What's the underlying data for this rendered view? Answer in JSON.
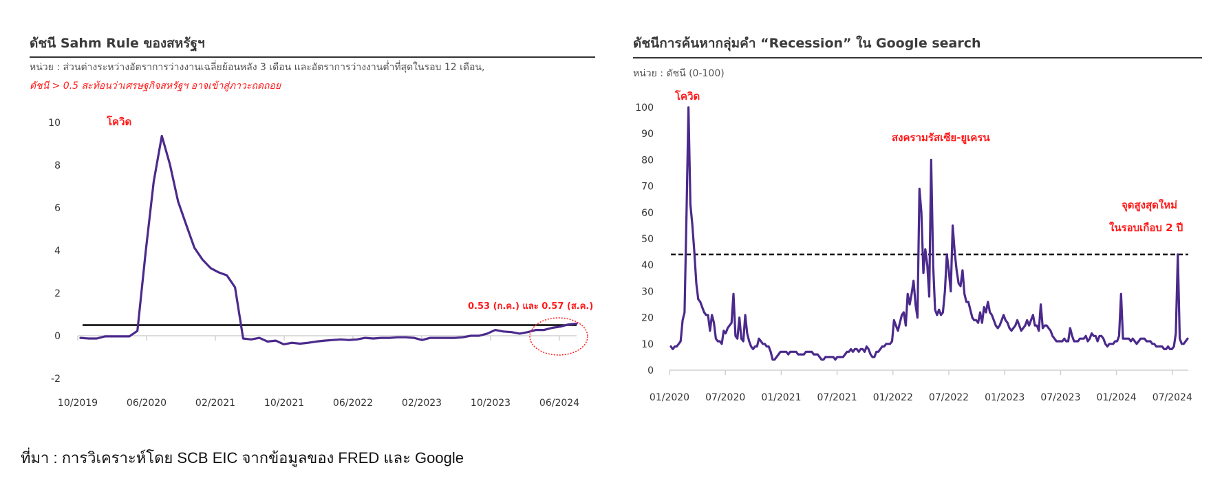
{
  "left": {
    "title": "ดัชนี Sahm Rule ของสหรัฐฯ",
    "unit": "หน่วย : ส่วนต่างระหว่างอัตราการว่างงานเฉลี่ยย้อนหลัง 3 เดือน และอัตราการว่างงานต่ำที่สุดในรอบ 12 เดือน,",
    "note": "ดัชนี > 0.5 สะท้อนว่าเศรษฐกิจสหรัฐฯ อาจเข้าสู่ภาวะถดถอย",
    "annotation_covid": "โควิด",
    "annotation_latest": "0.53 (ก.ค.) และ 0.57 (ส.ค.)"
  },
  "right": {
    "title": "ดัชนีการค้นหากลุ่มคำ “Recession” ใน Google search",
    "unit": "หน่วย : ดัชนี (0-100)",
    "annotation_covid": "โควิด",
    "annotation_war": "สงครามรัสเซีย-ยูเครน",
    "annotation_high_1": "จุดสูงสุดใหม่",
    "annotation_high_2": "ในรอบเกือบ 2 ปี"
  },
  "source": "ที่มา : การวิเคราะห์โดย SCB EIC จากข้อมูลของ FRED และ Google",
  "colors": {
    "series": "#4b2a8c",
    "threshold": "#000000",
    "annotation": "#ff1a1a",
    "axis": "#d0d0d0"
  },
  "chart_data": [
    {
      "type": "line",
      "title": "ดัชนี Sahm Rule ของสหรัฐฯ",
      "xlabel": "",
      "ylabel": "",
      "ylim": [
        -2,
        10
      ],
      "yticks": [
        10,
        8,
        6,
        4,
        2,
        0,
        -2
      ],
      "xticks": [
        "10/2019",
        "06/2020",
        "02/2021",
        "10/2021",
        "06/2022",
        "02/2023",
        "10/2023",
        "06/2024"
      ],
      "threshold": 0.5,
      "grid": false,
      "x_start": "10/2019",
      "x_step": "month",
      "series": [
        {
          "name": "Sahm Rule",
          "values": [
            -0.1,
            -0.13,
            -0.13,
            -0.03,
            -0.03,
            -0.03,
            -0.03,
            0.23,
            3.9,
            7.23,
            9.37,
            8.03,
            6.3,
            5.2,
            4.13,
            3.57,
            3.17,
            2.97,
            2.83,
            2.27,
            -0.13,
            -0.17,
            -0.1,
            -0.27,
            -0.23,
            -0.4,
            -0.33,
            -0.37,
            -0.33,
            -0.27,
            -0.23,
            -0.2,
            -0.17,
            -0.2,
            -0.17,
            -0.1,
            -0.13,
            -0.1,
            -0.1,
            -0.07,
            -0.07,
            -0.1,
            -0.2,
            -0.1,
            -0.1,
            -0.1,
            -0.1,
            -0.07,
            0.0,
            0.0,
            0.1,
            0.27,
            0.2,
            0.17,
            0.1,
            0.17,
            0.27,
            0.27,
            0.37,
            0.43,
            0.53,
            0.57
          ]
        }
      ],
      "annotations": [
        "โควิด",
        "0.53 (ก.ค.) และ 0.57 (ส.ค.)"
      ]
    },
    {
      "type": "line",
      "title": "ดัชนีการค้นหากลุ่มคำ “Recession” ใน Google search",
      "ylabel": "ดัชนี (0-100)",
      "ylim": [
        0,
        100
      ],
      "yticks": [
        100,
        90,
        80,
        70,
        60,
        50,
        40,
        30,
        20,
        10,
        0
      ],
      "xticks": [
        "01/2020",
        "07/2020",
        "01/2021",
        "07/2021",
        "01/2022",
        "07/2022",
        "01/2023",
        "07/2023",
        "01/2024",
        "07/2024"
      ],
      "threshold": 44,
      "grid": false,
      "x_start": "01/2020",
      "x_step": "week",
      "series": [
        {
          "name": "Recession search index",
          "values": [
            9,
            8,
            9,
            9,
            10,
            11,
            19,
            22,
            60,
            100,
            63,
            55,
            45,
            33,
            27,
            26,
            24,
            22,
            21,
            21,
            15,
            21,
            18,
            12,
            11,
            11,
            10,
            15,
            14,
            16,
            17,
            18,
            29,
            13,
            12,
            20,
            12,
            11,
            21,
            14,
            11,
            9,
            8,
            9,
            9,
            12,
            11,
            10,
            10,
            9,
            9,
            7,
            4,
            4,
            5,
            6,
            7,
            7,
            7,
            7,
            6,
            7,
            7,
            7,
            7,
            6,
            6,
            6,
            6,
            7,
            7,
            7,
            7,
            6,
            6,
            6,
            5,
            4,
            4,
            5,
            5,
            5,
            5,
            5,
            4,
            5,
            5,
            5,
            5,
            6,
            7,
            7,
            8,
            7,
            8,
            8,
            7,
            8,
            8,
            7,
            9,
            8,
            6,
            5,
            5,
            7,
            7,
            8,
            9,
            9,
            10,
            10,
            10,
            11,
            19,
            17,
            15,
            18,
            21,
            22,
            17,
            29,
            25,
            29,
            34,
            25,
            20,
            69,
            60,
            37,
            46,
            40,
            28,
            80,
            40,
            23,
            21,
            23,
            21,
            22,
            30,
            44,
            38,
            30,
            55,
            45,
            38,
            33,
            32,
            38,
            29,
            26,
            26,
            23,
            20,
            19,
            19,
            18,
            22,
            18,
            24,
            22,
            26,
            22,
            21,
            19,
            17,
            16,
            17,
            19,
            21,
            19,
            18,
            16,
            15,
            16,
            17,
            19,
            17,
            15,
            16,
            17,
            19,
            17,
            19,
            21,
            17,
            17,
            15,
            25,
            16,
            17,
            17,
            16,
            15,
            13,
            12,
            11,
            11,
            11,
            11,
            12,
            11,
            11,
            16,
            13,
            11,
            11,
            11,
            12,
            12,
            12,
            13,
            11,
            12,
            14,
            13,
            13,
            11,
            13,
            13,
            12,
            10,
            9,
            10,
            10,
            10,
            11,
            11,
            13,
            29,
            12,
            12,
            12,
            12,
            11,
            12,
            11,
            10,
            11,
            12,
            12,
            12,
            11,
            11,
            11,
            10,
            10,
            9,
            9,
            9,
            9,
            8,
            8,
            9,
            8,
            8,
            9,
            14,
            44,
            12,
            10,
            10,
            11,
            12
          ]
        }
      ],
      "annotations": [
        "โควิด",
        "สงครามรัสเซีย-ยูเครน",
        "จุดสูงสุดใหม่ ในรอบเกือบ 2 ปี"
      ]
    }
  ]
}
